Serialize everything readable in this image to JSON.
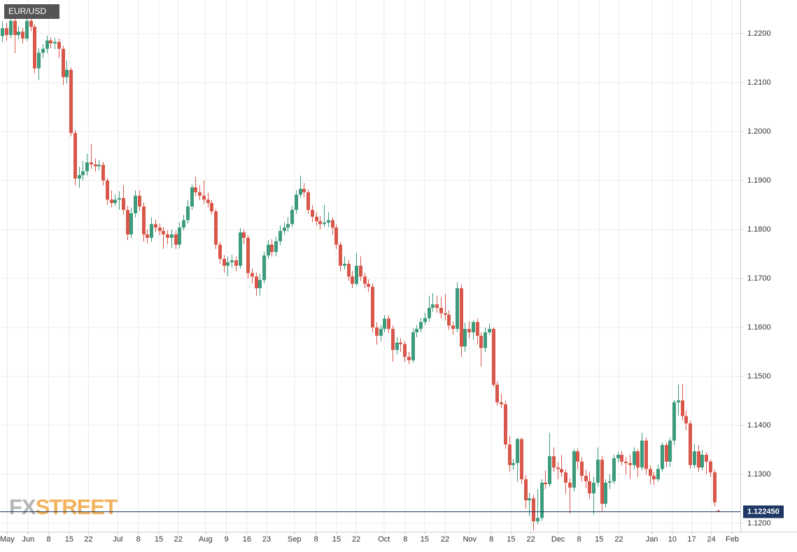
{
  "chart_data": {
    "type": "candlestick",
    "title": "EUR/USD",
    "x": [
      0,
      1,
      2,
      3,
      4,
      5,
      6,
      7,
      8,
      9,
      10,
      11,
      12,
      13,
      14,
      15,
      16,
      17,
      18,
      19,
      20,
      21,
      22,
      23,
      24,
      25,
      26,
      27,
      28,
      29,
      30,
      31,
      32,
      33,
      34,
      35,
      36,
      37,
      38,
      39,
      40,
      41,
      42,
      43,
      44,
      45,
      46,
      47,
      48,
      49,
      50,
      51,
      52,
      53,
      54,
      55,
      56,
      57,
      58,
      59,
      60,
      61,
      62,
      63,
      64,
      65,
      66,
      67,
      68,
      69,
      70,
      71,
      72,
      73,
      74,
      75,
      76,
      77,
      78,
      79,
      80,
      81,
      82,
      83,
      84,
      85,
      86,
      87,
      88,
      89,
      90,
      91,
      92,
      93,
      94,
      95,
      96,
      97,
      98,
      99,
      100,
      101,
      102,
      103,
      104,
      105,
      106,
      107,
      108,
      109,
      110,
      111,
      112,
      113,
      114,
      115,
      116,
      117,
      118,
      119,
      120,
      121,
      122,
      123,
      124,
      125,
      126,
      127,
      128,
      129,
      130,
      131,
      132,
      133,
      134,
      135,
      136,
      137,
      138,
      139,
      140,
      141,
      142,
      143,
      144,
      145,
      146,
      147,
      148,
      149,
      150,
      151,
      152,
      153,
      154,
      155,
      156,
      157,
      158,
      159,
      160,
      161,
      162,
      163,
      164,
      165,
      166,
      167,
      168,
      169,
      170,
      171,
      172,
      173,
      174,
      175,
      176,
      177,
      178
    ],
    "open": [
      1.2195,
      1.2211,
      1.2197,
      1.2226,
      1.2197,
      1.2204,
      1.219,
      1.2226,
      1.2214,
      1.2129,
      1.2161,
      1.2169,
      1.2186,
      1.218,
      1.2183,
      1.2169,
      1.2111,
      1.2126,
      1.1997,
      1.1904,
      1.1911,
      1.1919,
      1.1937,
      1.1933,
      1.1929,
      1.1932,
      1.19,
      1.1861,
      1.1854,
      1.1861,
      1.1864,
      1.184,
      1.179,
      1.1833,
      1.1869,
      1.1847,
      1.179,
      1.1783,
      1.1811,
      1.1804,
      1.1797,
      1.179,
      1.1783,
      1.179,
      1.1769,
      1.1804,
      1.1819,
      1.1847,
      1.1886,
      1.1876,
      1.1869,
      1.1861,
      1.1854,
      1.1837,
      1.1769,
      1.174,
      1.1726,
      1.1733,
      1.1737,
      1.1726,
      1.1794,
      1.1783,
      1.1711,
      1.1704,
      1.168,
      1.1697,
      1.1747,
      1.1769,
      1.1754,
      1.1776,
      1.1797,
      1.1804,
      1.1811,
      1.184,
      1.1871,
      1.1883,
      1.1876,
      1.184,
      1.1826,
      1.1817,
      1.1811,
      1.1814,
      1.1819,
      1.1804,
      1.1769,
      1.1726,
      1.173,
      1.1704,
      1.1689,
      1.1726,
      1.1704,
      1.1689,
      1.1683,
      1.16,
      1.1583,
      1.1597,
      1.1618,
      1.1597,
      1.1554,
      1.1569,
      1.1566,
      1.154,
      1.1533,
      1.159,
      1.1597,
      1.1611,
      1.1619,
      1.164,
      1.1647,
      1.164,
      1.1629,
      1.1626,
      1.1604,
      1.1597,
      1.168,
      1.1561,
      1.1597,
      1.159,
      1.1611,
      1.1583,
      1.1558,
      1.159,
      1.1597,
      1.1483,
      1.1447,
      1.1443,
      1.1361,
      1.1319,
      1.1323,
      1.1372,
      1.129,
      1.1247,
      1.1251,
      1.1204,
      1.1211,
      1.1283,
      1.128,
      1.1337,
      1.1314,
      1.1311,
      1.1304,
      1.1283,
      1.1273,
      1.1347,
      1.1326,
      1.1297,
      1.1286,
      1.1261,
      1.1283,
      1.133,
      1.124,
      1.1283,
      1.1286,
      1.1333,
      1.134,
      1.1326,
      1.1323,
      1.1319,
      1.1347,
      1.1314,
      1.1369,
      1.1311,
      1.1297,
      1.129,
      1.1311,
      1.136,
      1.1326,
      1.1369,
      1.1447,
      1.1451,
      1.1419,
      1.1404,
      1.1319,
      1.1347,
      1.1314,
      1.134,
      1.1326,
      1.1304,
      1.1226
    ],
    "high": [
      1.2225,
      1.2222,
      1.2236,
      1.2232,
      1.2215,
      1.2212,
      1.2236,
      1.224,
      1.2219,
      1.217,
      1.2178,
      1.2196,
      1.2192,
      1.2191,
      1.219,
      1.2175,
      1.2145,
      1.2131,
      1.2003,
      1.1928,
      1.194,
      1.1955,
      1.1975,
      1.1945,
      1.1942,
      1.1938,
      1.1905,
      1.188,
      1.1872,
      1.1878,
      1.189,
      1.1848,
      1.1845,
      1.188,
      1.188,
      1.1855,
      1.18,
      1.1825,
      1.182,
      1.1812,
      1.1805,
      1.1798,
      1.18,
      1.1797,
      1.1815,
      1.183,
      1.186,
      1.1892,
      1.1908,
      1.189,
      1.19,
      1.1875,
      1.186,
      1.1842,
      1.1775,
      1.1748,
      1.1745,
      1.1748,
      1.1745,
      1.1803,
      1.18,
      1.1788,
      1.172,
      1.1712,
      1.171,
      1.1755,
      1.1778,
      1.178,
      1.1785,
      1.1808,
      1.1815,
      1.1825,
      1.1848,
      1.188,
      1.191,
      1.1895,
      1.1882,
      1.185,
      1.1835,
      1.1828,
      1.185,
      1.1835,
      1.1825,
      1.181,
      1.1775,
      1.1745,
      1.1738,
      1.1715,
      1.1752,
      1.1745,
      1.1712,
      1.1698,
      1.169,
      1.161,
      1.1605,
      1.1625,
      1.1625,
      1.1604,
      1.158,
      1.1578,
      1.1572,
      1.155,
      1.1598,
      1.1605,
      1.162,
      1.163,
      1.1665,
      1.167,
      1.1665,
      1.1662,
      1.1668,
      1.1635,
      1.1612,
      1.1692,
      1.1688,
      1.161,
      1.1612,
      1.1615,
      1.1618,
      1.159,
      1.16,
      1.1608,
      1.16,
      1.149,
      1.1465,
      1.145,
      1.1378,
      1.1332,
      1.1375,
      1.1375,
      1.1298,
      1.1262,
      1.1258,
      1.127,
      1.129,
      1.1308,
      1.1385,
      1.1355,
      1.1325,
      1.134,
      1.131,
      1.1292,
      1.1352,
      1.1352,
      1.1335,
      1.131,
      1.1305,
      1.1295,
      1.1355,
      1.1338,
      1.129,
      1.13,
      1.134,
      1.1345,
      1.1348,
      1.1335,
      1.134,
      1.1355,
      1.1352,
      1.1385,
      1.1375,
      1.1318,
      1.1305,
      1.132,
      1.1365,
      1.1365,
      1.1375,
      1.1452,
      1.1483,
      1.1485,
      1.143,
      1.141,
      1.1362,
      1.136,
      1.135,
      1.1345,
      1.133,
      1.131,
      1.1228
    ],
    "low": [
      1.2182,
      1.2186,
      1.219,
      1.216,
      1.2188,
      1.218,
      1.2185,
      1.2205,
      1.2119,
      1.2105,
      1.215,
      1.216,
      1.217,
      1.2168,
      1.215,
      1.2095,
      1.2098,
      1.199,
      1.189,
      1.1885,
      1.19,
      1.191,
      1.1924,
      1.1918,
      1.192,
      1.189,
      1.185,
      1.1845,
      1.1848,
      1.184,
      1.183,
      1.1778,
      1.1782,
      1.1825,
      1.1838,
      1.1775,
      1.1772,
      1.1775,
      1.1795,
      1.1788,
      1.176,
      1.177,
      1.1762,
      1.176,
      1.1762,
      1.1798,
      1.1812,
      1.184,
      1.1868,
      1.186,
      1.1852,
      1.1845,
      1.183,
      1.176,
      1.173,
      1.1712,
      1.1705,
      1.1722,
      1.1715,
      1.172,
      1.177,
      1.17,
      1.169,
      1.1665,
      1.1665,
      1.169,
      1.174,
      1.1745,
      1.1745,
      1.1768,
      1.179,
      1.1795,
      1.1805,
      1.1832,
      1.1865,
      1.1865,
      1.1832,
      1.1815,
      1.1808,
      1.18,
      1.1805,
      1.1805,
      1.179,
      1.176,
      1.1715,
      1.1718,
      1.1695,
      1.168,
      1.1685,
      1.1695,
      1.168,
      1.1672,
      1.159,
      1.1565,
      1.1572,
      1.159,
      1.1588,
      1.153,
      1.1545,
      1.155,
      1.153,
      1.1525,
      1.1528,
      1.158,
      1.159,
      1.1605,
      1.1612,
      1.1632,
      1.163,
      1.1618,
      1.1615,
      1.1595,
      1.1585,
      1.159,
      1.154,
      1.155,
      1.1578,
      1.1575,
      1.1565,
      1.152,
      1.155,
      1.1585,
      1.1478,
      1.144,
      1.1435,
      1.1352,
      1.1305,
      1.131,
      1.1285,
      1.128,
      1.123,
      1.1215,
      1.1186,
      1.1198,
      1.1205,
      1.127,
      1.1275,
      1.1305,
      1.129,
      1.1295,
      1.126,
      1.122,
      1.1265,
      1.131,
      1.1285,
      1.1272,
      1.125,
      1.1218,
      1.1275,
      1.1225,
      1.1232,
      1.127,
      1.128,
      1.1325,
      1.1318,
      1.13,
      1.129,
      1.131,
      1.1295,
      1.1308,
      1.13,
      1.128,
      1.1278,
      1.1285,
      1.1305,
      1.1315,
      1.1315,
      1.136,
      1.142,
      1.141,
      1.139,
      1.1312,
      1.1312,
      1.1305,
      1.1308,
      1.13,
      1.1295,
      1.1235,
      1.1223
    ],
    "close": [
      1.2211,
      1.2197,
      1.2226,
      1.2197,
      1.2204,
      1.219,
      1.2226,
      1.2214,
      1.2129,
      1.2161,
      1.2169,
      1.2186,
      1.218,
      1.2183,
      1.2169,
      1.2111,
      1.2126,
      1.1997,
      1.1904,
      1.1911,
      1.1919,
      1.1937,
      1.1933,
      1.1929,
      1.1932,
      1.19,
      1.1861,
      1.1854,
      1.1861,
      1.1864,
      1.184,
      1.179,
      1.1833,
      1.1869,
      1.1847,
      1.179,
      1.1783,
      1.1811,
      1.1804,
      1.1797,
      1.179,
      1.1783,
      1.179,
      1.1769,
      1.1804,
      1.1819,
      1.1847,
      1.1886,
      1.1876,
      1.1869,
      1.1861,
      1.1854,
      1.1837,
      1.1769,
      1.174,
      1.1726,
      1.1733,
      1.1737,
      1.1726,
      1.1794,
      1.1783,
      1.1711,
      1.1704,
      1.168,
      1.1697,
      1.1747,
      1.1769,
      1.1754,
      1.1776,
      1.1797,
      1.1804,
      1.1811,
      1.184,
      1.1871,
      1.1883,
      1.1876,
      1.184,
      1.1826,
      1.1817,
      1.1811,
      1.1814,
      1.1819,
      1.1804,
      1.1769,
      1.1726,
      1.173,
      1.1704,
      1.1689,
      1.1726,
      1.1704,
      1.1689,
      1.1683,
      1.16,
      1.1583,
      1.1597,
      1.1618,
      1.1597,
      1.1554,
      1.1569,
      1.1566,
      1.154,
      1.1533,
      1.159,
      1.1597,
      1.1611,
      1.1619,
      1.164,
      1.1647,
      1.164,
      1.1629,
      1.1626,
      1.1604,
      1.1597,
      1.168,
      1.1561,
      1.1597,
      1.159,
      1.1611,
      1.1583,
      1.1558,
      1.159,
      1.1597,
      1.1483,
      1.1447,
      1.1443,
      1.1361,
      1.1319,
      1.1323,
      1.1372,
      1.129,
      1.1247,
      1.1251,
      1.1204,
      1.1211,
      1.1283,
      1.128,
      1.1337,
      1.1314,
      1.1311,
      1.1304,
      1.1283,
      1.1273,
      1.1347,
      1.1326,
      1.1297,
      1.1286,
      1.1261,
      1.1283,
      1.133,
      1.124,
      1.1283,
      1.1286,
      1.1333,
      1.134,
      1.1326,
      1.1323,
      1.1319,
      1.1347,
      1.1314,
      1.1369,
      1.1311,
      1.1297,
      1.129,
      1.1311,
      1.136,
      1.1326,
      1.1369,
      1.1447,
      1.1451,
      1.1419,
      1.1404,
      1.1319,
      1.1347,
      1.1314,
      1.134,
      1.1326,
      1.1304,
      1.1243,
      1.1225
    ],
    "up_color": "#3c9b7d",
    "down_color": "#d9574a",
    "xlim": [
      -0.6,
      183.5
    ],
    "xticks": [
      {
        "value": 1.2,
        "label": "May"
      },
      {
        "value": 6.4,
        "label": "Jun"
      },
      {
        "value": 11.5,
        "label": "8"
      },
      {
        "value": 16.6,
        "label": "15"
      },
      {
        "value": 21.4,
        "label": "22"
      },
      {
        "value": 28.7,
        "label": "Jul"
      },
      {
        "value": 33.8,
        "label": "8"
      },
      {
        "value": 38.9,
        "label": "15"
      },
      {
        "value": 43.7,
        "label": "22"
      },
      {
        "value": 50.5,
        "label": "Aug"
      },
      {
        "value": 55.7,
        "label": "9"
      },
      {
        "value": 60.8,
        "label": "16"
      },
      {
        "value": 65.7,
        "label": "23"
      },
      {
        "value": 72.6,
        "label": "Sep"
      },
      {
        "value": 78,
        "label": "8"
      },
      {
        "value": 83.1,
        "label": "15"
      },
      {
        "value": 88,
        "label": "22"
      },
      {
        "value": 94.9,
        "label": "Oct"
      },
      {
        "value": 100.2,
        "label": "8"
      },
      {
        "value": 105,
        "label": "15"
      },
      {
        "value": 110.1,
        "label": "22"
      },
      {
        "value": 116.2,
        "label": "Nov"
      },
      {
        "value": 121.6,
        "label": "8"
      },
      {
        "value": 126.5,
        "label": "15"
      },
      {
        "value": 131.4,
        "label": "22"
      },
      {
        "value": 138.2,
        "label": "Dec"
      },
      {
        "value": 143.4,
        "label": "8"
      },
      {
        "value": 148.4,
        "label": "15"
      },
      {
        "value": 153.3,
        "label": "22"
      },
      {
        "value": 161.5,
        "label": "Jan"
      },
      {
        "value": 166.6,
        "label": "10"
      },
      {
        "value": 171.4,
        "label": "17"
      },
      {
        "value": 176.3,
        "label": "24"
      },
      {
        "value": 181.5,
        "label": "Feb"
      }
    ],
    "ylim": [
      1.11829,
      1.22686
    ],
    "yticks": [
      {
        "value": 1.12,
        "label": "1.1200"
      },
      {
        "value": 1.13,
        "label": "1.1300"
      },
      {
        "value": 1.14,
        "label": "1.1400"
      },
      {
        "value": 1.15,
        "label": "1.1500"
      },
      {
        "value": 1.16,
        "label": "1.1600"
      },
      {
        "value": 1.17,
        "label": "1.1700"
      },
      {
        "value": 1.18,
        "label": "1.1800"
      },
      {
        "value": 1.19,
        "label": "1.1900"
      },
      {
        "value": 1.2,
        "label": "1.2000"
      },
      {
        "value": 1.21,
        "label": "1.2100"
      },
      {
        "value": 1.22,
        "label": "1.2200"
      }
    ],
    "last_price": {
      "value": 1.12245,
      "label": "1.122450"
    },
    "grid": true
  },
  "watermark": {
    "fx": "FX",
    "street": "STREET"
  }
}
